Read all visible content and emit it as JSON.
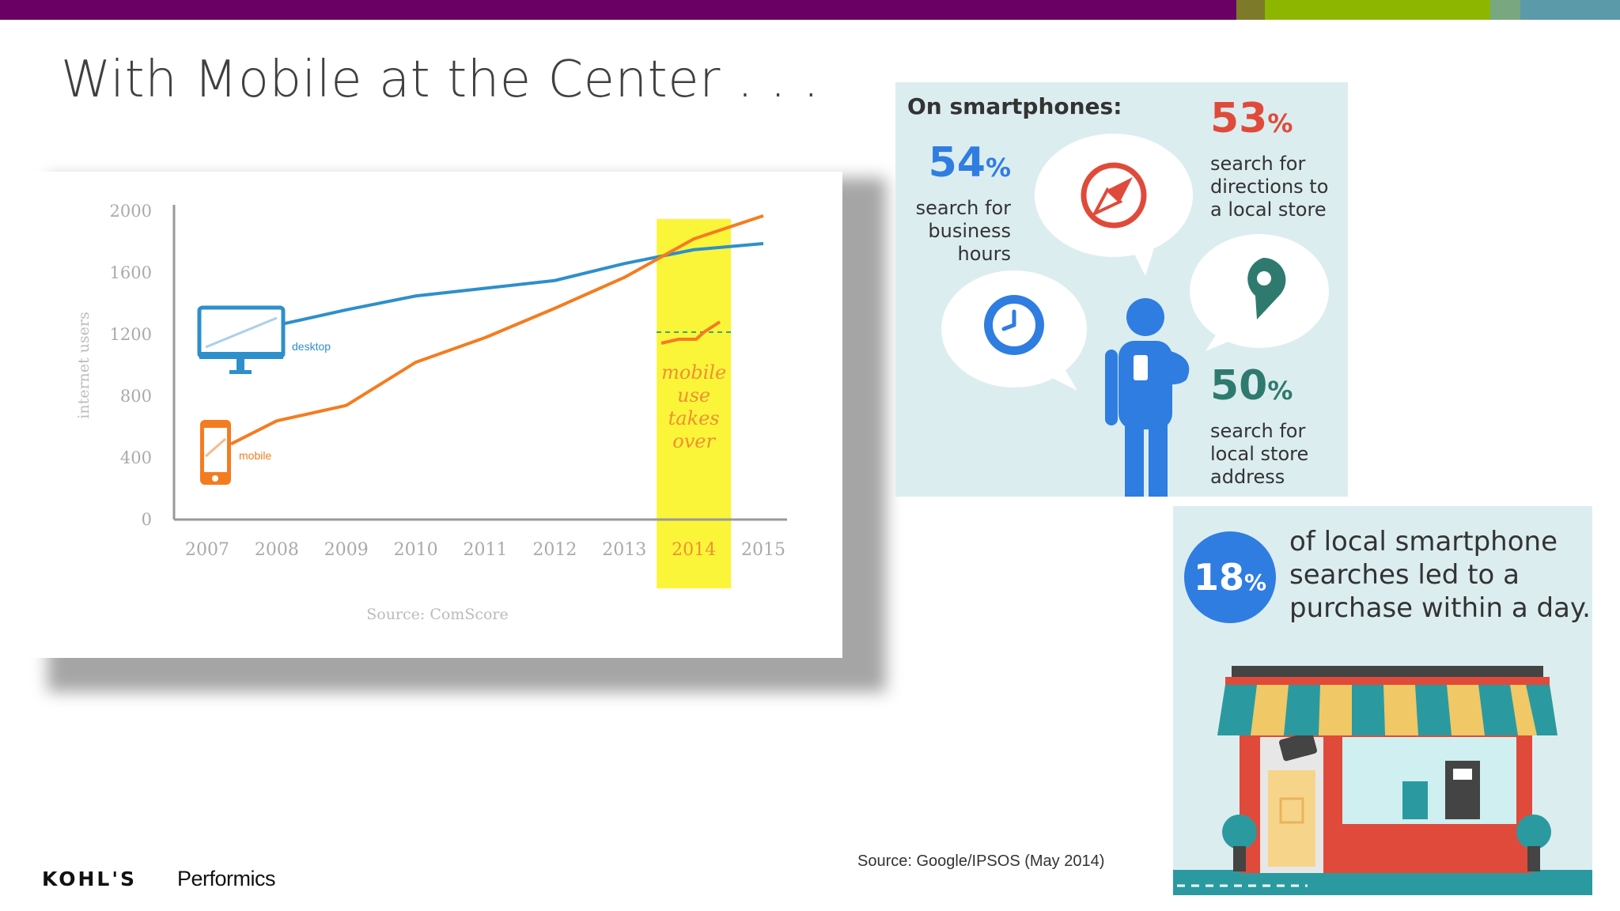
{
  "slide": {
    "title": "With Mobile at the Center . . .",
    "source": "Source: Google/IPSOS (May 2014)",
    "brand": "KOHL'S",
    "partner": "Performics",
    "colors": {
      "purple": "#6b0064",
      "olive": "#7d7a2a",
      "green": "#8db600",
      "teal": "#5b9aa8",
      "blue": "#2e8fcb",
      "orange": "#f47c20",
      "highlight": "#fbf53a",
      "infoBlue": "#2f7de1",
      "infoRed": "#e04a3a",
      "infoTeal": "#2f7a6e"
    }
  },
  "chart_data": {
    "type": "line",
    "ylabel": "internet users",
    "source": "Source: ComScore",
    "x": [
      "2007",
      "2008",
      "2009",
      "2010",
      "2011",
      "2012",
      "2013",
      "2014",
      "2015"
    ],
    "yticks": [
      "0",
      "400",
      "800",
      "1200",
      "1600",
      "2000"
    ],
    "ylim": [
      0,
      2000
    ],
    "highlight_year": "2014",
    "annotation": [
      "mobile",
      "use",
      "takes",
      "over"
    ],
    "series": [
      {
        "name": "desktop",
        "values": [
          1150,
          1260,
          1360,
          1450,
          1500,
          1550,
          1660,
          1750,
          1790
        ],
        "color": "#2e8fcb"
      },
      {
        "name": "mobile",
        "values": [
          400,
          640,
          740,
          1020,
          1180,
          1370,
          1570,
          1820,
          1970
        ],
        "color": "#f47c20"
      }
    ]
  },
  "infographic": {
    "heading": "On smartphones:",
    "stats": [
      {
        "value": "54",
        "unit": "%",
        "lines": [
          "search for",
          "business",
          "hours"
        ]
      },
      {
        "value": "53",
        "unit": "%",
        "lines": [
          "search for",
          "directions to",
          "a local store"
        ]
      },
      {
        "value": "50",
        "unit": "%",
        "lines": [
          "search for",
          "local store",
          "address"
        ]
      }
    ],
    "highlight": {
      "value": "18",
      "unit": "%",
      "lines": [
        "of local smartphone",
        "searches led to a",
        "purchase within a day."
      ]
    }
  }
}
